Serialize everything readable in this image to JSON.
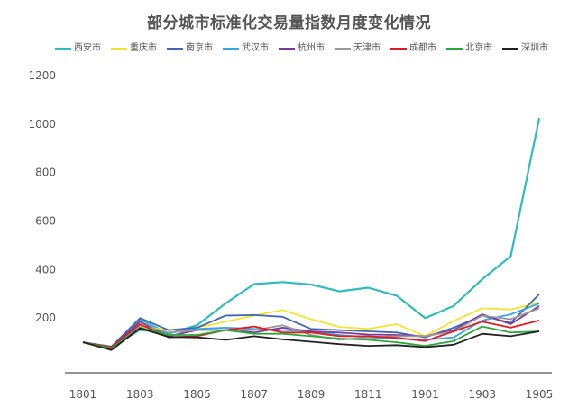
{
  "chart_data": {
    "type": "line",
    "title": "部分城市标准化交易量指数月度变化情况",
    "xlabel": "",
    "ylabel": "",
    "ylim": [
      0,
      1200
    ],
    "yticks": [
      200,
      400,
      600,
      800,
      1000,
      1200
    ],
    "grid": false,
    "legend_position": "top",
    "x": [
      "1801",
      "1802",
      "1803",
      "1804",
      "1805",
      "1806",
      "1807",
      "1808",
      "1809",
      "1810",
      "1811",
      "1812",
      "1901",
      "1902",
      "1903",
      "1904",
      "1905"
    ],
    "xtick_labels": [
      "1801",
      "1803",
      "1805",
      "1807",
      "1809",
      "1811",
      "1901",
      "1903",
      "1905"
    ],
    "series": [
      {
        "name": "西安市",
        "color": "#2ebcbc",
        "values": [
          100,
          80,
          195,
          135,
          170,
          260,
          340,
          348,
          338,
          310,
          325,
          292,
          200,
          250,
          360,
          455,
          1025
        ]
      },
      {
        "name": "重庆市",
        "color": "#f2e52e",
        "values": [
          100,
          75,
          165,
          150,
          160,
          185,
          210,
          233,
          195,
          163,
          155,
          175,
          125,
          188,
          240,
          235,
          265
        ]
      },
      {
        "name": "南京市",
        "color": "#3f66b8",
        "values": [
          100,
          82,
          200,
          150,
          160,
          210,
          212,
          205,
          155,
          150,
          145,
          140,
          120,
          160,
          210,
          180,
          298
        ]
      },
      {
        "name": "武汉市",
        "color": "#3aa5e0",
        "values": [
          100,
          80,
          150,
          138,
          155,
          160,
          155,
          150,
          145,
          130,
          120,
          115,
          110,
          120,
          190,
          215,
          260
        ]
      },
      {
        "name": "杭州市",
        "color": "#7a3a9a",
        "values": [
          100,
          78,
          185,
          125,
          150,
          150,
          140,
          160,
          145,
          140,
          132,
          130,
          125,
          150,
          215,
          175,
          250
        ]
      },
      {
        "name": "天津市",
        "color": "#999999",
        "values": [
          100,
          72,
          170,
          140,
          150,
          150,
          150,
          170,
          130,
          110,
          120,
          125,
          125,
          145,
          210,
          195,
          240
        ]
      },
      {
        "name": "成都市",
        "color": "#e01b24",
        "values": [
          100,
          80,
          175,
          120,
          125,
          150,
          165,
          140,
          140,
          125,
          125,
          118,
          105,
          145,
          185,
          160,
          190
        ]
      },
      {
        "name": "北京市",
        "color": "#2aa838",
        "values": [
          100,
          75,
          160,
          130,
          130,
          150,
          135,
          135,
          125,
          115,
          110,
          100,
          85,
          105,
          165,
          140,
          145
        ]
      },
      {
        "name": "深圳市",
        "color": "#222222",
        "values": [
          100,
          68,
          158,
          122,
          120,
          110,
          125,
          112,
          102,
          92,
          85,
          88,
          80,
          90,
          135,
          125,
          145
        ]
      }
    ]
  }
}
